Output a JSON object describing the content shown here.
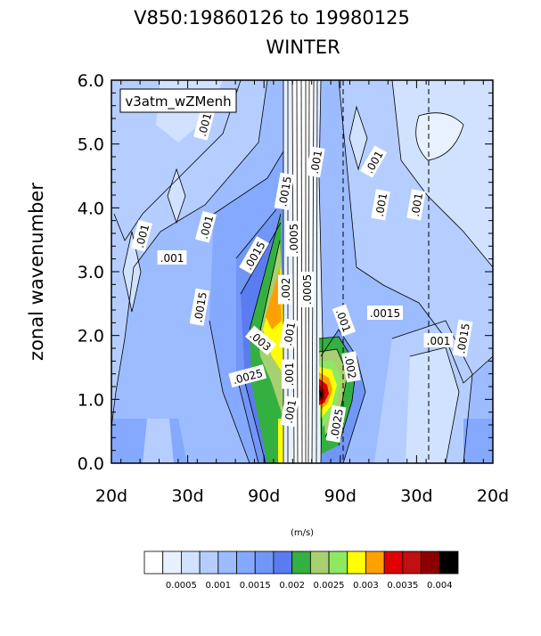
{
  "chart_data": {
    "type": "heatmap",
    "title": "V850:19860126 to 19980125",
    "subtitle": "WINTER",
    "xlabel": "",
    "ylabel": "zonal wavenumber",
    "xtick_labels": [
      "20d",
      "30d",
      "90d",
      "90d",
      "30d",
      "20d"
    ],
    "ytick_labels": [
      "0.0",
      "1.0",
      "2.0",
      "3.0",
      "4.0",
      "5.0",
      "6.0"
    ],
    "ylim": [
      0,
      6
    ],
    "legend_box": "v3atm_wZMenh",
    "units": "(m/s)",
    "colorbar": {
      "colors": [
        "#ffffff",
        "#e8f1ff",
        "#d0e2ff",
        "#b5ceff",
        "#9cbcff",
        "#84a9ff",
        "#7196f5",
        "#5b7cf0",
        "#33b040",
        "#a8d070",
        "#8ee860",
        "#ffff00",
        "#ffa000",
        "#e00000",
        "#c01010",
        "#8b0000",
        "#000000"
      ],
      "tick_labels": [
        "0.0005",
        "0.001",
        "0.0015",
        "0.002",
        "0.0025",
        "0.003",
        "0.0035",
        "0.004"
      ]
    },
    "contour_labels": [
      ".001",
      ".001",
      ".001",
      ".001",
      ".001",
      ".001",
      ".001",
      ".001",
      ".001",
      ".0015",
      ".0015",
      ".0015",
      ".0015",
      ".0015",
      ".001",
      ".002",
      ".0005",
      ".0005",
      ".001",
      ".003",
      ".0025",
      ".002",
      ".0025",
      ".001",
      ".001"
    ]
  }
}
